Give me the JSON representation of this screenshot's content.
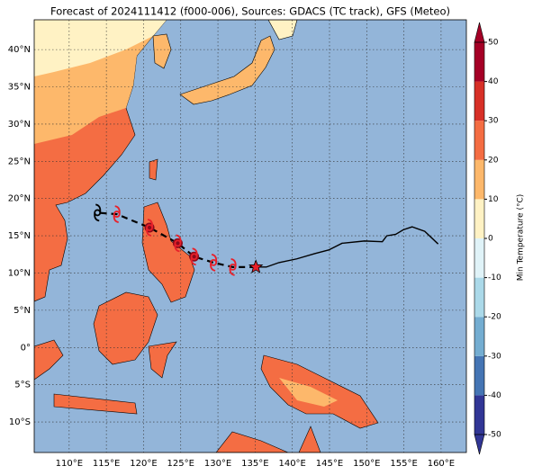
{
  "chart_data": {
    "type": "map",
    "title": "Forecast of 2024111412 (f000-006), Sources: GDACS (TC track), GFS (Meteo)",
    "xlim": [
      105.3,
      163.4
    ],
    "ylim": [
      -14.1,
      44.0
    ],
    "xticks": [
      {
        "value": 110,
        "label": "110°E"
      },
      {
        "value": 115,
        "label": "115°E"
      },
      {
        "value": 120,
        "label": "120°E"
      },
      {
        "value": 125,
        "label": "125°E"
      },
      {
        "value": 130,
        "label": "130°E"
      },
      {
        "value": 135,
        "label": "135°E"
      },
      {
        "value": 140,
        "label": "140°E"
      },
      {
        "value": 145,
        "label": "145°E"
      },
      {
        "value": 150,
        "label": "150°E"
      },
      {
        "value": 155,
        "label": "155°E"
      },
      {
        "value": 160,
        "label": "160°E"
      }
    ],
    "yticks": [
      {
        "value": -10,
        "label": "10°S"
      },
      {
        "value": -5,
        "label": "5°S"
      },
      {
        "value": 0,
        "label": "0°"
      },
      {
        "value": 5,
        "label": "5°N"
      },
      {
        "value": 10,
        "label": "10°N"
      },
      {
        "value": 15,
        "label": "15°N"
      },
      {
        "value": 20,
        "label": "20°N"
      },
      {
        "value": 25,
        "label": "25°N"
      },
      {
        "value": 30,
        "label": "30°N"
      },
      {
        "value": 35,
        "label": "35°N"
      },
      {
        "value": 40,
        "label": "40°N"
      }
    ],
    "grid": true,
    "ocean_color": "#93b5d9",
    "colorbar": {
      "label": "Min Temperature (°C)",
      "lim": [
        -50,
        50
      ],
      "ticks": [
        -50,
        -40,
        -30,
        -20,
        -10,
        0,
        10,
        20,
        30,
        40,
        50
      ],
      "colors": [
        "#313695",
        "#4575b4",
        "#74add1",
        "#abd9e9",
        "#e0f3f8",
        "#fff2c4",
        "#fdb86b",
        "#f46d43",
        "#d73027",
        "#a50026"
      ]
    },
    "history_track": {
      "color": "#000000",
      "lon": [
        135.1,
        136.5,
        138.2,
        140.6,
        143.0,
        144.9,
        146.7,
        149.7,
        152.1,
        152.7,
        153.9,
        154.9,
        156.1,
        157.8,
        159.6
      ],
      "lat": [
        10.8,
        10.8,
        11.4,
        11.9,
        12.6,
        13.1,
        14.0,
        14.3,
        14.2,
        15.0,
        15.2,
        15.8,
        16.2,
        15.6,
        13.9
      ]
    },
    "forecast_track": {
      "lon": [
        135.1,
        132.0,
        129.4,
        126.8,
        124.6,
        120.8,
        116.4,
        113.8
      ],
      "lat": [
        10.8,
        10.8,
        11.4,
        12.2,
        14.0,
        16.1,
        17.9,
        18.1
      ],
      "colors": [
        "#e8202a",
        "#e8202a",
        "#e8202a",
        "#8b0a1a",
        "#8b0a1a",
        "#8b0a1a",
        "#e8202a",
        "#000000"
      ]
    }
  }
}
